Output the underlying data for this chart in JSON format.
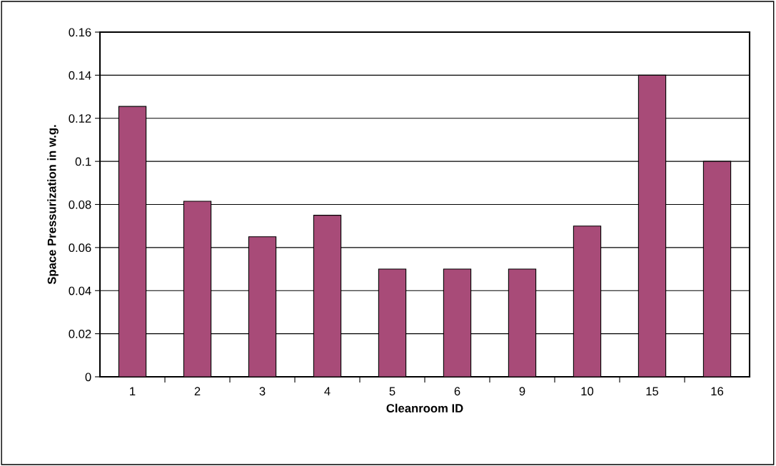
{
  "chart_data": {
    "type": "bar",
    "xlabel": "Cleanroom ID",
    "ylabel": "Space Pressurization in w.g.",
    "categories": [
      "1",
      "2",
      "3",
      "4",
      "5",
      "6",
      "9",
      "10",
      "15",
      "16"
    ],
    "values": [
      0.1255,
      0.0815,
      0.065,
      0.075,
      0.05,
      0.05,
      0.05,
      0.07,
      0.14,
      0.1
    ],
    "color": "#a84b78",
    "ylim": [
      0,
      0.16
    ],
    "yticks": [
      0,
      0.02,
      0.04,
      0.06,
      0.08,
      0.1,
      0.12,
      0.14,
      0.16
    ],
    "grid": "y"
  }
}
